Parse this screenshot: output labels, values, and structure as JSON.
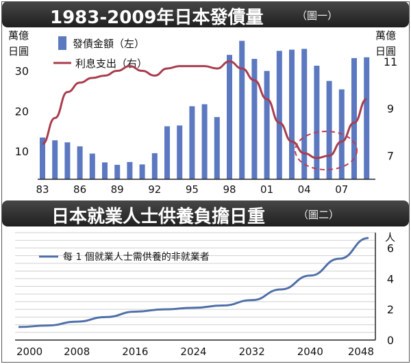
{
  "chart1": {
    "title": "1983-2009年日本發債量",
    "subtitle": "（圖一）",
    "left_unit": [
      "萬億",
      "日圓"
    ],
    "right_unit": [
      "萬億",
      "日圓"
    ],
    "legend": {
      "bar": "發債金額（左）",
      "line": "利息支出（右）"
    }
  },
  "chart2": {
    "title": "日本就業人士供養負擔日重",
    "subtitle": "（圖二）",
    "unit": "人",
    "legend": "每 1 個就業人士需供養的非就業者"
  },
  "chart_data": [
    {
      "type": "bar",
      "categories": [
        "83",
        "84",
        "85",
        "86",
        "87",
        "88",
        "89",
        "90",
        "91",
        "92",
        "93",
        "94",
        "95",
        "96",
        "97",
        "98",
        "99",
        "00",
        "01",
        "02",
        "03",
        "04",
        "05",
        "06",
        "07",
        "08",
        "09"
      ],
      "x_tick_labels": [
        "83",
        "86",
        "89",
        "92",
        "95",
        "98",
        "01",
        "04",
        "07"
      ],
      "series": [
        {
          "name": "發債金額（左）",
          "axis": "left",
          "color": "#5b78c0",
          "values": [
            13.4,
            12.7,
            12.2,
            11.2,
            9.4,
            7.2,
            6.6,
            7.3,
            6.7,
            9.5,
            16.2,
            16.4,
            21.2,
            21.7,
            18.5,
            34.0,
            37.5,
            33.0,
            30.0,
            35.0,
            35.3,
            35.5,
            31.3,
            27.5,
            25.4,
            33.2,
            33.4
          ]
        },
        {
          "name": "利息支出（右）",
          "axis": "right",
          "type": "line",
          "color": "#a83c4c",
          "values": [
            7.5,
            8.6,
            9.7,
            10.1,
            10.3,
            10.4,
            10.6,
            10.8,
            10.6,
            10.4,
            10.7,
            10.8,
            10.8,
            10.8,
            10.7,
            11.0,
            10.7,
            10.2,
            9.4,
            8.4,
            7.6,
            7.1,
            6.9,
            7.0,
            7.6,
            8.4,
            9.4
          ]
        }
      ],
      "y_left": {
        "ticks": [
          10,
          20,
          30
        ],
        "range": [
          3,
          40
        ]
      },
      "y_right": {
        "ticks": [
          7,
          9,
          11
        ],
        "range": [
          6,
          12.3
        ]
      },
      "annotation": "dashed ellipse around 03–06 interest minimum"
    },
    {
      "type": "line",
      "x": [
        2000,
        2004,
        2008,
        2012,
        2016,
        2020,
        2024,
        2028,
        2032,
        2036,
        2040,
        2044,
        2048
      ],
      "x_tick_labels": [
        "2000",
        "2008",
        "2016",
        "2024",
        "2032",
        "2040",
        "2048"
      ],
      "series": [
        {
          "name": "每 1 個就業人士需供養的非就業者",
          "color": "#4f6fa8",
          "values": [
            0.85,
            0.95,
            1.2,
            1.5,
            1.85,
            2.0,
            2.1,
            2.25,
            2.6,
            3.3,
            4.2,
            5.3,
            6.65
          ]
        }
      ],
      "y_ticks": [
        0,
        2,
        4,
        6
      ],
      "ylim": [
        0,
        7
      ],
      "grid": true
    }
  ]
}
